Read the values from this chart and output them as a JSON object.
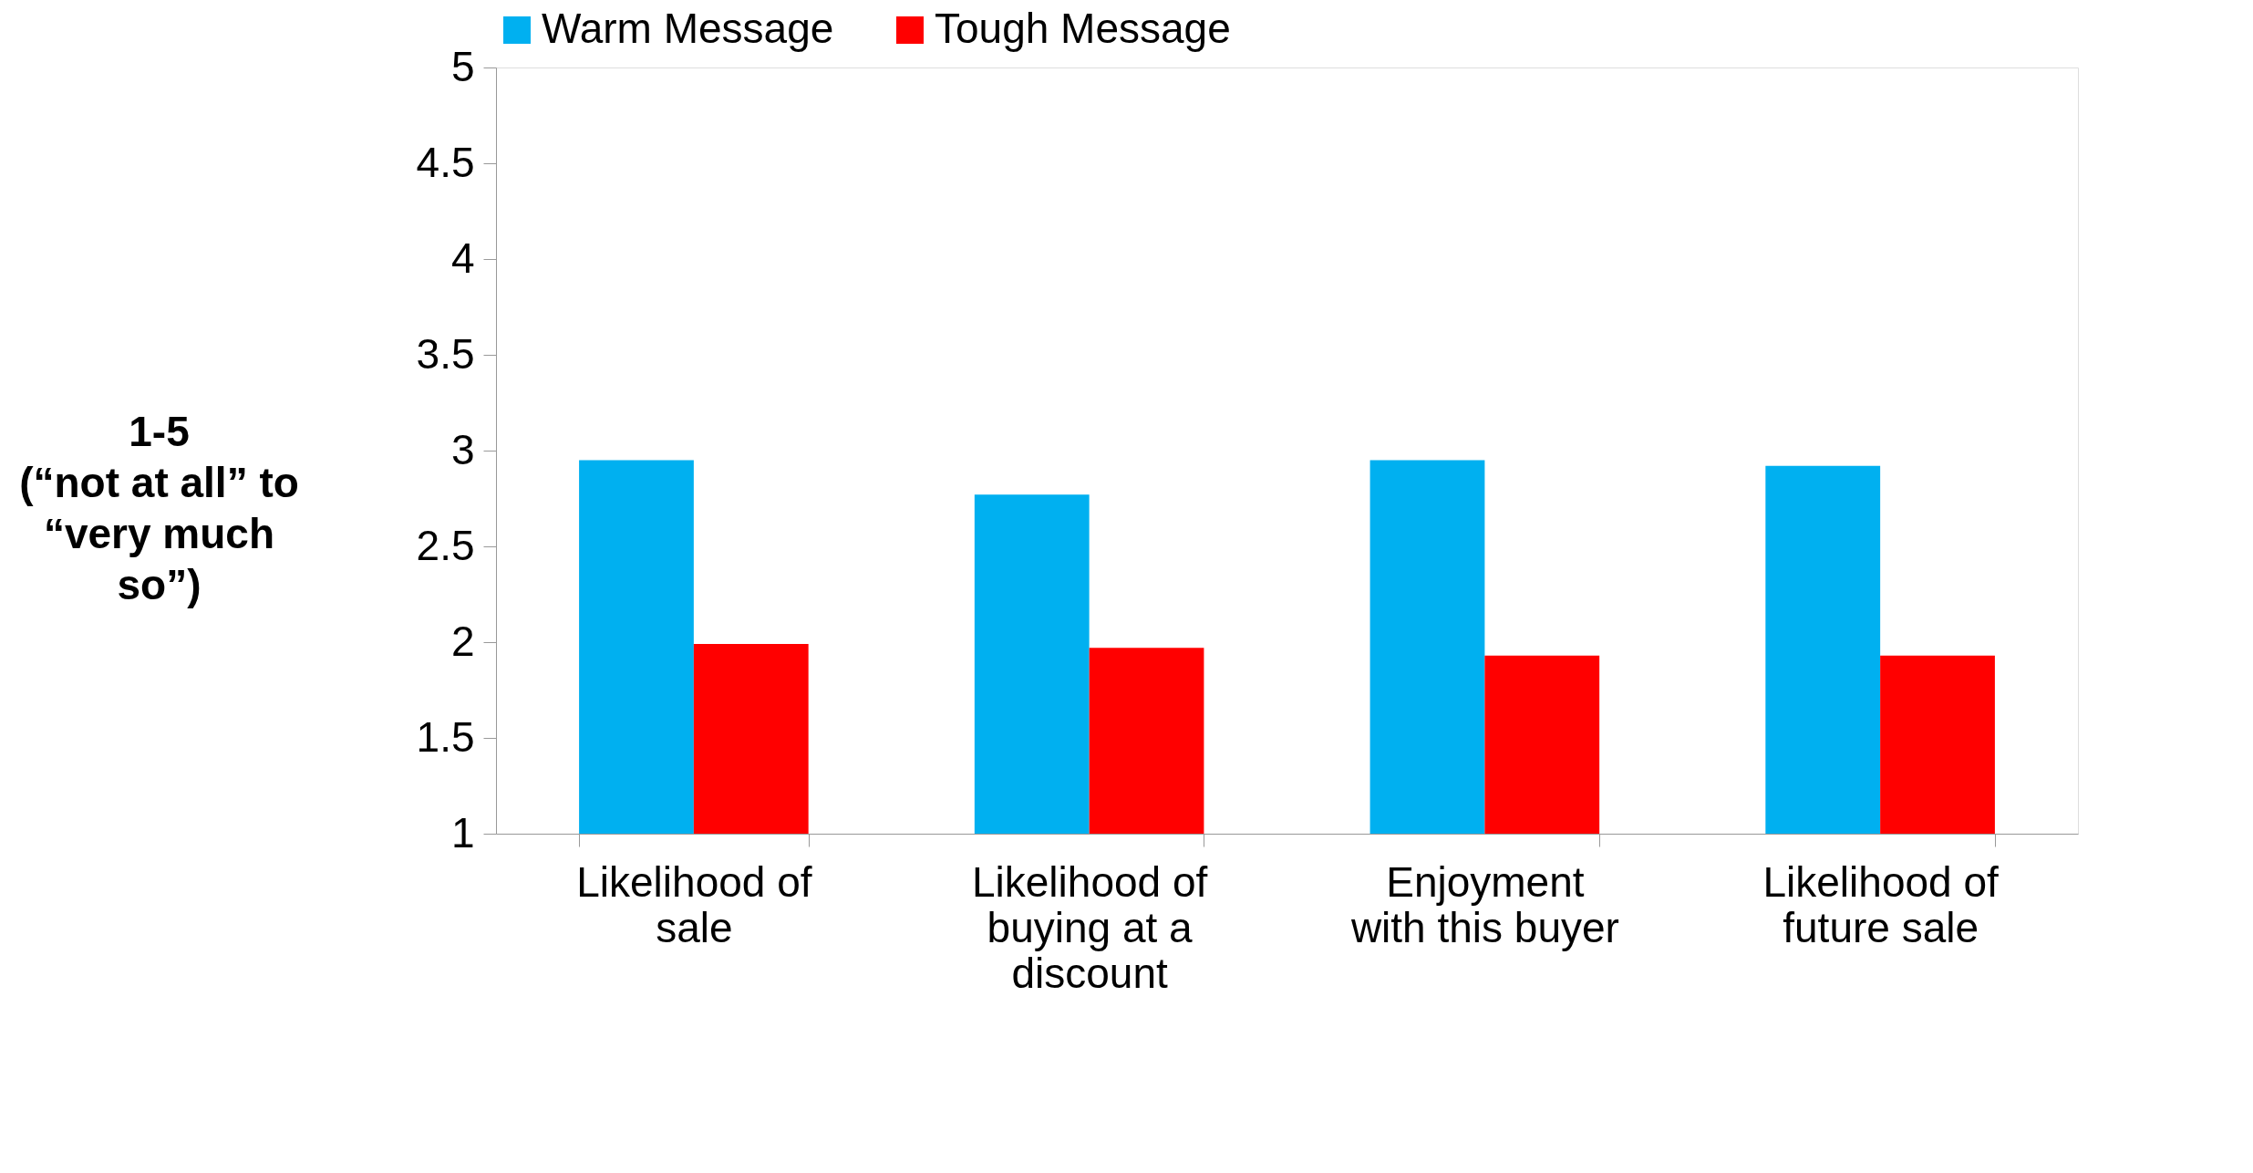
{
  "chart_data": {
    "type": "bar",
    "categories": [
      "Likelihood of\nsale",
      "Likelihood of\nbuying at a\ndiscount",
      "Enjoyment\nwith this buyer",
      "Likelihood of\nfuture sale"
    ],
    "series": [
      {
        "name": "Warm Message",
        "color": "#00b0f0",
        "values": [
          2.95,
          2.77,
          2.95,
          2.92
        ]
      },
      {
        "name": "Tough Message",
        "color": "#ff0000",
        "values": [
          1.99,
          1.97,
          1.93,
          1.93
        ]
      }
    ],
    "ylabel": "1-5\n(“not at all” to\n“very much\nso”)",
    "ylim": [
      1,
      5
    ],
    "yticks": [
      1,
      1.5,
      2,
      2.5,
      3,
      3.5,
      4,
      4.5,
      5
    ],
    "grid": false,
    "legend": "top"
  }
}
